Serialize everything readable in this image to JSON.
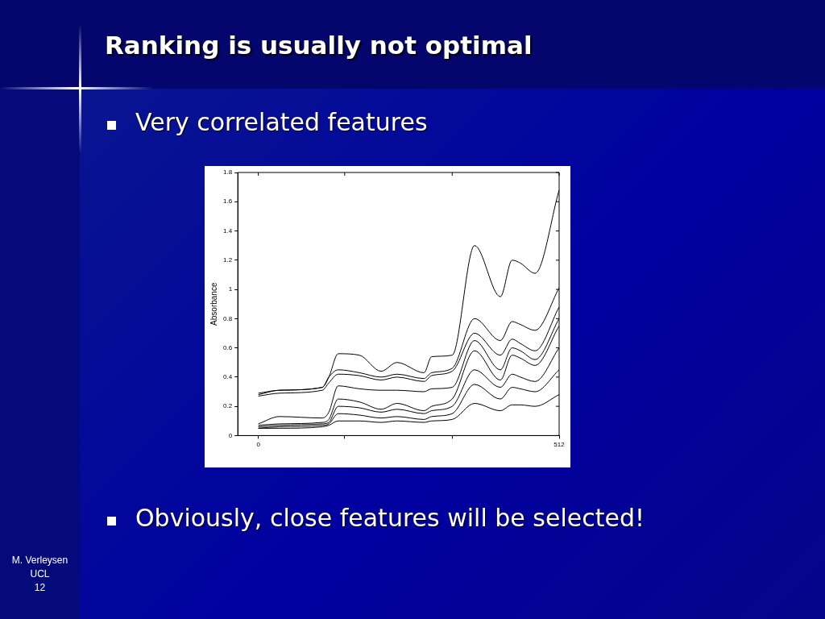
{
  "chart_data": {
    "type": "line",
    "title": "Ranking is usually not optimal",
    "ylabel": "Absorbance",
    "annotations": [
      "Very correlated features",
      "Obviously, close features will be selected!",
      "M. Verleysen",
      "UCL",
      "12"
    ],
    "x": [
      0,
      36,
      109,
      120,
      136,
      172,
      209,
      236,
      282,
      295,
      330,
      368,
      412,
      432,
      446,
      471,
      512
    ],
    "series": [
      {
        "color": "#000000",
        "values": [
          0.29,
          0.31,
          0.33,
          0.4,
          0.56,
          0.55,
          0.44,
          0.5,
          0.43,
          0.54,
          0.55,
          1.3,
          0.95,
          1.2,
          1.18,
          1.11,
          1.68
        ]
      },
      {
        "color": "#000000",
        "values": [
          0.28,
          0.31,
          0.33,
          0.4,
          0.45,
          0.43,
          0.4,
          0.42,
          0.39,
          0.43,
          0.46,
          0.8,
          0.65,
          0.78,
          0.76,
          0.72,
          1.01
        ]
      },
      {
        "color": "#000000",
        "values": [
          0.27,
          0.29,
          0.31,
          0.36,
          0.42,
          0.41,
          0.38,
          0.4,
          0.37,
          0.41,
          0.44,
          0.7,
          0.55,
          0.66,
          0.63,
          0.58,
          0.88
        ]
      },
      {
        "color": "#000000",
        "values": [
          0.08,
          0.13,
          0.12,
          0.16,
          0.34,
          0.32,
          0.31,
          0.31,
          0.3,
          0.32,
          0.33,
          0.65,
          0.45,
          0.6,
          0.58,
          0.52,
          0.8
        ]
      },
      {
        "color": "#000000",
        "values": [
          0.07,
          0.08,
          0.09,
          0.11,
          0.25,
          0.23,
          0.18,
          0.22,
          0.17,
          0.2,
          0.25,
          0.58,
          0.38,
          0.55,
          0.53,
          0.48,
          0.75
        ]
      },
      {
        "color": "#000000",
        "values": [
          0.06,
          0.07,
          0.08,
          0.09,
          0.2,
          0.19,
          0.16,
          0.18,
          0.15,
          0.17,
          0.2,
          0.45,
          0.33,
          0.42,
          0.4,
          0.37,
          0.6
        ]
      },
      {
        "color": "#000000",
        "values": [
          0.05,
          0.06,
          0.07,
          0.08,
          0.15,
          0.14,
          0.12,
          0.13,
          0.11,
          0.13,
          0.15,
          0.35,
          0.25,
          0.33,
          0.32,
          0.3,
          0.45
        ]
      },
      {
        "color": "#000000",
        "values": [
          0.05,
          0.05,
          0.06,
          0.07,
          0.1,
          0.1,
          0.09,
          0.1,
          0.09,
          0.1,
          0.11,
          0.22,
          0.17,
          0.21,
          0.21,
          0.2,
          0.28
        ]
      }
    ],
    "xlim": [
      -35,
      512
    ],
    "xticks": [
      0,
      {
        "value": 147,
        "label": null
      },
      {
        "value": 330,
        "label": null
      },
      512
    ],
    "ylim": [
      0,
      1.8
    ],
    "yticks": [
      0,
      0.2,
      0.4,
      0.6,
      0.8,
      1,
      1.2,
      1.4,
      1.6,
      1.8
    ],
    "grid": false,
    "legend": false,
    "marker": "none",
    "line_style": "solid"
  }
}
